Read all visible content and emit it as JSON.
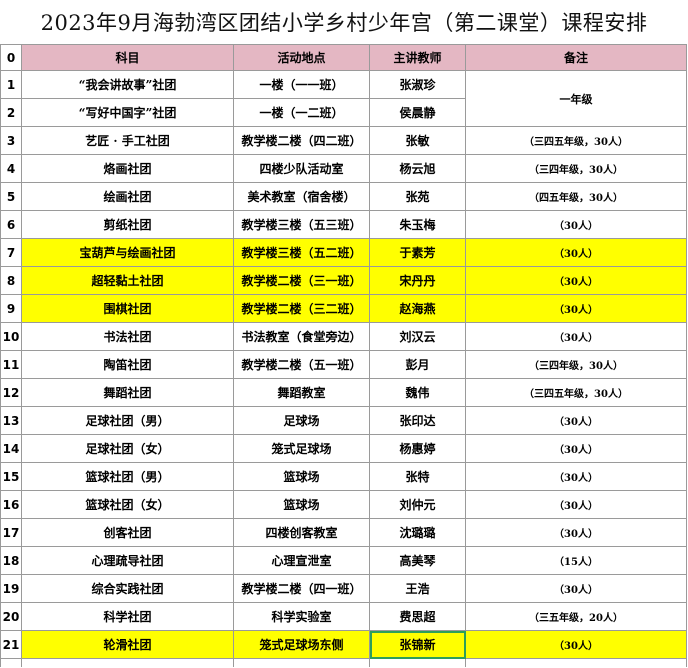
{
  "title": "2023年9月海勃湾区团结小学乡村少年宫（第二课堂）课程安排",
  "colors": {
    "header_bg": "#e4b7c3",
    "highlight": "#ffff00",
    "selected_border": "#2e9e5b"
  },
  "header": {
    "index": "0",
    "subject": "科目",
    "location": "活动地点",
    "teacher": "主讲教师",
    "notes": "备注"
  },
  "merged_note": "一年级",
  "rows": [
    {
      "index": "1",
      "subject": "“我会讲故事”社团",
      "location": "一楼（一一班）",
      "teacher": "张淑珍",
      "notes": ""
    },
    {
      "index": "2",
      "subject": "“写好中国字”社团",
      "location": "一楼（一二班）",
      "teacher": "侯晨静",
      "notes": ""
    },
    {
      "index": "3",
      "subject": "艺匠 · 手工社团",
      "location": "教学楼二楼（四二班）",
      "teacher": "张敏",
      "notes": "（三四五年级，30人）"
    },
    {
      "index": "4",
      "subject": "烙画社团",
      "location": "四楼少队活动室",
      "teacher": "杨云旭",
      "notes": "（三四年级，30人）"
    },
    {
      "index": "5",
      "subject": "绘画社团",
      "location": "美术教室（宿舍楼）",
      "teacher": "张苑",
      "notes": "（四五年级，30人）"
    },
    {
      "index": "6",
      "subject": "剪纸社团",
      "location": "教学楼三楼（五三班）",
      "teacher": "朱玉梅",
      "notes": "（30人）"
    },
    {
      "index": "7",
      "subject": "宝葫芦与绘画社团",
      "location": "教学楼三楼（五二班）",
      "teacher": "于素芳",
      "notes": "（30人）",
      "highlight": true
    },
    {
      "index": "8",
      "subject": "超轻黏土社团",
      "location": "教学楼二楼（三一班）",
      "teacher": "宋丹丹",
      "notes": "（30人）",
      "highlight": true
    },
    {
      "index": "9",
      "subject": "围棋社团",
      "location": "教学楼二楼（三二班）",
      "teacher": "赵海燕",
      "notes": "（30人）",
      "highlight": true
    },
    {
      "index": "10",
      "subject": "书法社团",
      "location": "书法教室（食堂旁边）",
      "teacher": "刘汉云",
      "notes": "（30人）"
    },
    {
      "index": "11",
      "subject": "陶笛社团",
      "location": "教学楼二楼（五一班）",
      "teacher": "彭月",
      "notes": "（三四年级，30人）"
    },
    {
      "index": "12",
      "subject": "舞蹈社团",
      "location": "舞蹈教室",
      "teacher": "魏伟",
      "notes": "（三四五年级，30人）"
    },
    {
      "index": "13",
      "subject": "足球社团（男）",
      "location": "足球场",
      "teacher": "张印达",
      "notes": "（30人）"
    },
    {
      "index": "14",
      "subject": "足球社团（女）",
      "location": "笼式足球场",
      "teacher": "杨惠婷",
      "notes": "（30人）"
    },
    {
      "index": "15",
      "subject": "篮球社团（男）",
      "location": "篮球场",
      "teacher": "张特",
      "notes": "（30人）"
    },
    {
      "index": "16",
      "subject": "篮球社团（女）",
      "location": "篮球场",
      "teacher": "刘仲元",
      "notes": "（30人）"
    },
    {
      "index": "17",
      "subject": "创客社团",
      "location": "四楼创客教室",
      "teacher": "沈璐璐",
      "notes": "（30人）"
    },
    {
      "index": "18",
      "subject": "心理疏导社团",
      "location": "心理宣泄室",
      "teacher": "高美琴",
      "notes": "（15人）"
    },
    {
      "index": "19",
      "subject": "综合实践社团",
      "location": "教学楼二楼（四一班）",
      "teacher": "王浩",
      "notes": "（30人）"
    },
    {
      "index": "20",
      "subject": "科学社团",
      "location": "科学实验室",
      "teacher": "费思超",
      "notes": "（三五年级，20人）"
    },
    {
      "index": "21",
      "subject": "轮滑社团",
      "location": "笼式足球场东侧",
      "teacher": "张锦新",
      "notes": "（30人）",
      "highlight": true
    }
  ]
}
